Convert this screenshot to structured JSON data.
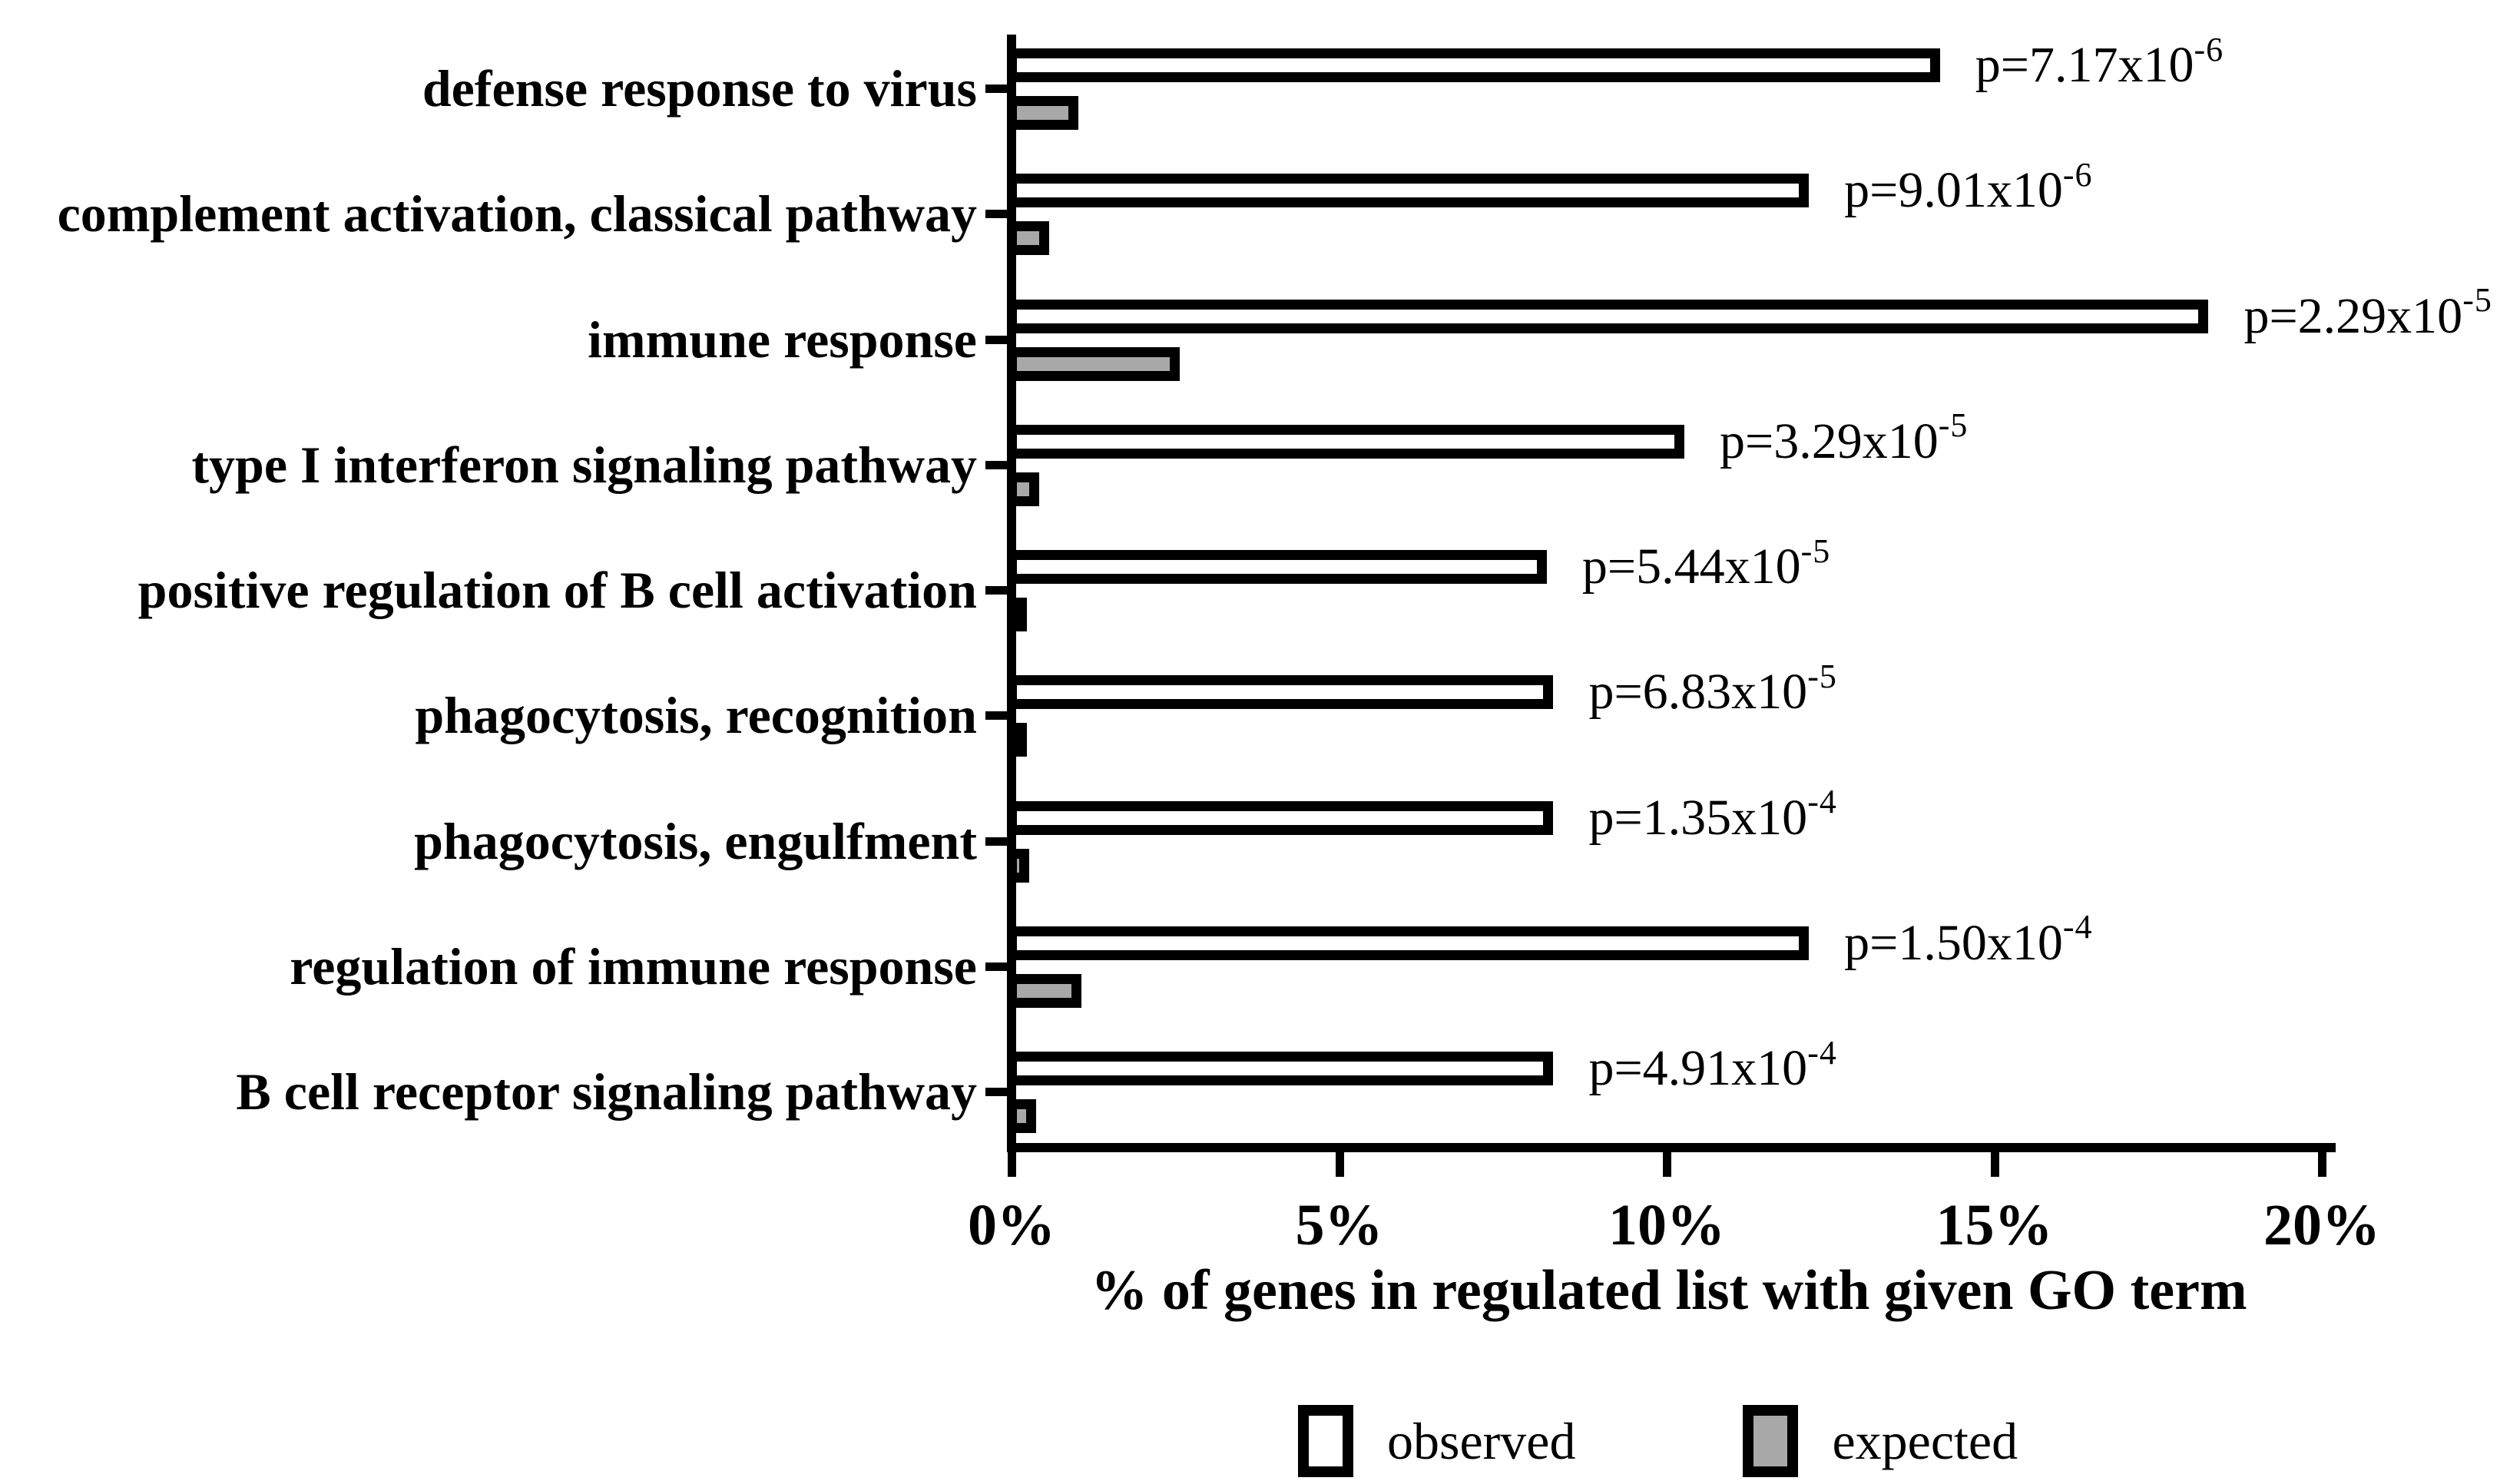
{
  "chart_data": {
    "type": "bar",
    "orientation": "horizontal",
    "title": "",
    "xlabel": "% of genes in regulated list with given GO term",
    "ylabel": "",
    "xlim": [
      0,
      20
    ],
    "grid": false,
    "legend_position": "bottom",
    "categories": [
      "defense response to virus",
      "complement activation, classical pathway",
      "immune response",
      "type I interferon signaling pathway",
      "positive regulation of B cell activation",
      "phagocytosis, recognition",
      "phagocytosis, engulfment",
      "regulation of immune response",
      "B cell receptor signaling pathway"
    ],
    "series": [
      {
        "name": "observed",
        "fill": "#ffffff",
        "values": [
          14.1,
          12.1,
          18.2,
          10.2,
          8.1,
          8.2,
          8.2,
          12.1,
          8.2
        ]
      },
      {
        "name": "expected",
        "fill": "#a8a8a8",
        "values": [
          0.95,
          0.5,
          2.5,
          0.35,
          0.1,
          0.1,
          0.2,
          1.0,
          0.3
        ]
      }
    ],
    "p_values": [
      {
        "base": "p=7.17x10",
        "exp": "-6"
      },
      {
        "base": "p=9.01x10",
        "exp": "-6"
      },
      {
        "base": "p=2.29x10",
        "exp": "-5"
      },
      {
        "base": "p=3.29x10",
        "exp": "-5"
      },
      {
        "base": "p=5.44x10",
        "exp": "-5"
      },
      {
        "base": "p=6.83x10",
        "exp": "-5"
      },
      {
        "base": "p=1.35x10",
        "exp": "-4"
      },
      {
        "base": "p=1.50x10",
        "exp": "-4"
      },
      {
        "base": "p=4.91x10",
        "exp": "-4"
      }
    ],
    "x_ticks": [
      {
        "value": 0,
        "label": "0%"
      },
      {
        "value": 5,
        "label": "5%"
      },
      {
        "value": 10,
        "label": "10%"
      },
      {
        "value": 15,
        "label": "15%"
      },
      {
        "value": 20,
        "label": "20%"
      }
    ],
    "legend": [
      {
        "label": "observed",
        "fill": "#ffffff"
      },
      {
        "label": "expected",
        "fill": "#a8a8a8"
      }
    ],
    "colors": {
      "axis": "#000000",
      "bar_border": "#000000",
      "background": "#ffffff"
    }
  }
}
